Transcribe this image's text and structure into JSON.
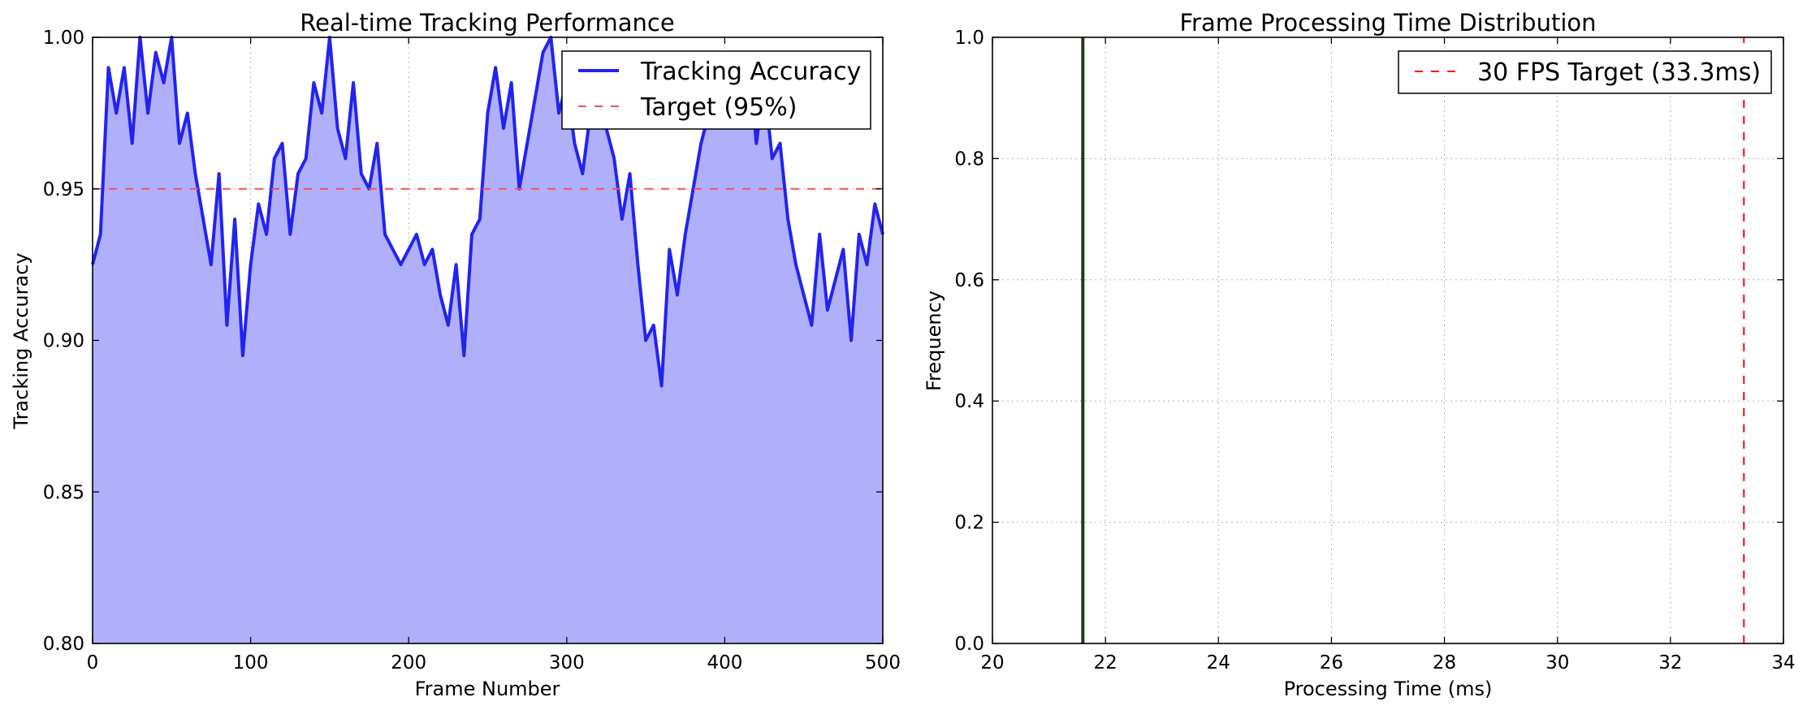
{
  "chart_data": [
    {
      "type": "line",
      "title": "Real-time Tracking Performance",
      "xlabel": "Frame Number",
      "ylabel": "Tracking Accuracy",
      "xlim": [
        0,
        500
      ],
      "ylim": [
        0.8,
        1.0
      ],
      "xticks": [
        0,
        100,
        200,
        300,
        400,
        500
      ],
      "yticks": [
        0.8,
        0.85,
        0.9,
        0.95,
        1.0
      ],
      "xtick_labels": [
        "0",
        "100",
        "200",
        "300",
        "400",
        "500"
      ],
      "ytick_labels": [
        "0.80",
        "0.85",
        "0.90",
        "0.95",
        "1.00"
      ],
      "grid": true,
      "legend_position": "top-right",
      "colors": {
        "line": "#2323f0",
        "fill": "#b0b0fa",
        "target": "#ff4d4d"
      },
      "series": [
        {
          "name": "Tracking Accuracy",
          "style": "solid line with area fill",
          "x": [
            0,
            5,
            10,
            15,
            20,
            25,
            30,
            35,
            40,
            45,
            50,
            55,
            60,
            65,
            70,
            75,
            80,
            85,
            90,
            95,
            100,
            105,
            110,
            115,
            120,
            125,
            130,
            135,
            140,
            145,
            150,
            155,
            160,
            165,
            170,
            175,
            180,
            185,
            190,
            195,
            200,
            205,
            210,
            215,
            220,
            225,
            230,
            235,
            240,
            245,
            250,
            255,
            260,
            265,
            270,
            275,
            280,
            285,
            290,
            295,
            300,
            305,
            310,
            315,
            320,
            325,
            330,
            335,
            340,
            345,
            350,
            355,
            360,
            365,
            370,
            375,
            380,
            385,
            390,
            395,
            400,
            405,
            410,
            415,
            420,
            425,
            430,
            435,
            440,
            445,
            450,
            455,
            460,
            465,
            470,
            475,
            480,
            485,
            490,
            495,
            500
          ],
          "y": [
            0.925,
            0.935,
            0.99,
            0.975,
            0.99,
            0.965,
            1.0,
            0.975,
            0.995,
            0.985,
            1.0,
            0.965,
            0.975,
            0.955,
            0.94,
            0.925,
            0.955,
            0.905,
            0.94,
            0.895,
            0.925,
            0.945,
            0.935,
            0.96,
            0.965,
            0.935,
            0.955,
            0.96,
            0.985,
            0.975,
            1.0,
            0.97,
            0.96,
            0.985,
            0.955,
            0.95,
            0.965,
            0.935,
            0.93,
            0.925,
            0.93,
            0.935,
            0.925,
            0.93,
            0.915,
            0.905,
            0.925,
            0.895,
            0.935,
            0.94,
            0.975,
            0.99,
            0.97,
            0.985,
            0.95,
            0.965,
            0.98,
            0.995,
            1.0,
            0.975,
            0.985,
            0.965,
            0.955,
            0.975,
            0.985,
            0.97,
            0.96,
            0.94,
            0.955,
            0.925,
            0.9,
            0.905,
            0.885,
            0.93,
            0.915,
            0.935,
            0.95,
            0.965,
            0.975,
            0.985,
            0.99,
            0.98,
            0.975,
            0.995,
            0.965,
            0.985,
            0.96,
            0.965,
            0.94,
            0.925,
            0.915,
            0.905,
            0.935,
            0.91,
            0.92,
            0.93,
            0.9,
            0.935,
            0.925,
            0.945,
            0.935
          ]
        },
        {
          "name": "Target (95%)",
          "style": "dashed",
          "x": [
            0,
            500
          ],
          "y": [
            0.95,
            0.95
          ]
        }
      ]
    },
    {
      "type": "bar",
      "title": "Frame Processing Time Distribution",
      "xlabel": "Processing Time (ms)",
      "ylabel": "Frequency",
      "xlim": [
        20,
        34
      ],
      "ylim": [
        0.0,
        1.0
      ],
      "xticks": [
        20,
        22,
        24,
        26,
        28,
        30,
        32,
        34
      ],
      "yticks": [
        0.0,
        0.2,
        0.4,
        0.6,
        0.8,
        1.0
      ],
      "xtick_labels": [
        "20",
        "22",
        "24",
        "26",
        "28",
        "30",
        "32",
        "34"
      ],
      "ytick_labels": [
        "0.0",
        "0.2",
        "0.4",
        "0.6",
        "0.8",
        "1.0"
      ],
      "grid": true,
      "legend_position": "top-right",
      "colors": {
        "bar": "#1f3a1f",
        "target": "#ff0000"
      },
      "bars": [
        {
          "x": 21.6,
          "height": 1.0
        }
      ],
      "series": [
        {
          "name": "30 FPS Target (33.3ms)",
          "style": "dashed vertical line",
          "x": [
            33.3,
            33.3
          ],
          "y": [
            0.0,
            1.0
          ]
        }
      ]
    }
  ]
}
